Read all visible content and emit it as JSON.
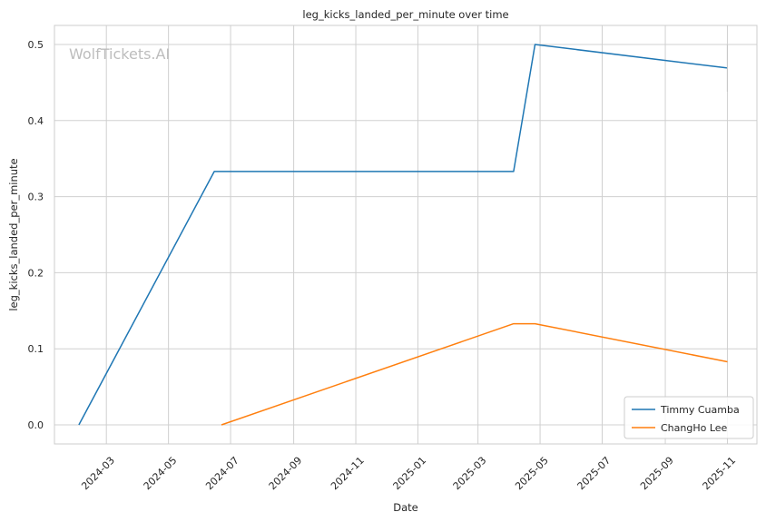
{
  "chart_data": {
    "type": "line",
    "title": "leg_kicks_landed_per_minute over time",
    "xlabel": "Date",
    "ylabel": "leg_kicks_landed_per_minute",
    "x_ticks": [
      "2024-03",
      "2024-05",
      "2024-07",
      "2024-09",
      "2024-11",
      "2025-01",
      "2025-03",
      "2025-05",
      "2025-07",
      "2025-09",
      "2025-11"
    ],
    "y_ticks": [
      "0.0",
      "0.1",
      "0.2",
      "0.3",
      "0.4",
      "0.5"
    ],
    "xlim": [
      "2024-01-10",
      "2025-11-30"
    ],
    "ylim": [
      -0.025,
      0.525
    ],
    "grid": true,
    "legend_position": "lower right",
    "watermark": "WolfTickets.AI",
    "series": [
      {
        "name": "Timmy Cuamba",
        "color": "#1f77b4",
        "points": [
          {
            "x": "2024-02-03",
            "y": 0.0
          },
          {
            "x": "2024-06-15",
            "y": 0.333
          },
          {
            "x": "2025-04-05",
            "y": 0.333
          },
          {
            "x": "2025-04-26",
            "y": 0.5
          },
          {
            "x": "2025-11-01",
            "y": 0.469
          }
        ]
      },
      {
        "name": "ChangHo Lee",
        "color": "#ff7f0e",
        "points": [
          {
            "x": "2024-06-22",
            "y": 0.0
          },
          {
            "x": "2025-04-05",
            "y": 0.133
          },
          {
            "x": "2025-04-26",
            "y": 0.133
          },
          {
            "x": "2025-11-01",
            "y": 0.083
          }
        ]
      }
    ]
  }
}
